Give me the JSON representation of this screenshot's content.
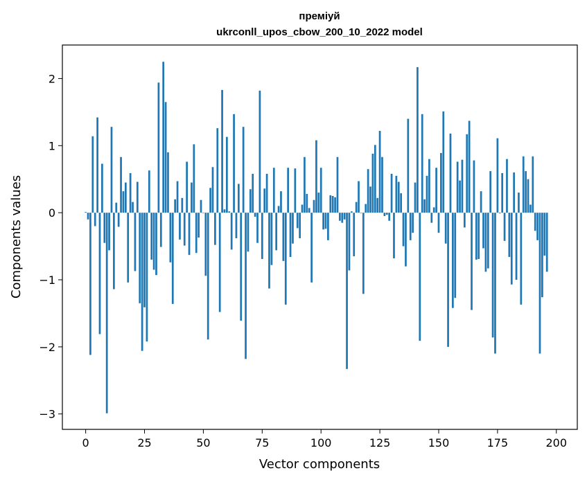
{
  "chart_data": {
    "type": "bar",
    "title_line1": "преміуй",
    "title_line2": "ukrconll_upos_cbow_200_10_2022 model",
    "xlabel": "Vector components",
    "ylabel": "Components values",
    "xlim": [
      -9.9,
      208.9
    ],
    "ylim": [
      -3.23,
      2.5
    ],
    "xticks": [
      0,
      25,
      50,
      75,
      100,
      125,
      150,
      175,
      200
    ],
    "yticks": [
      -3,
      -2,
      -1,
      0,
      1,
      2
    ],
    "ytick_labels": [
      "−3",
      "−2",
      "−1",
      "0",
      "1",
      "2"
    ],
    "bar_color": "#1f77b4",
    "values": [
      0.01,
      -0.1,
      -2.12,
      1.14,
      -0.2,
      1.42,
      -1.81,
      0.73,
      -0.45,
      -2.99,
      -0.56,
      1.28,
      -1.14,
      0.15,
      -0.21,
      0.83,
      0.32,
      0.45,
      -1.04,
      0.59,
      0.16,
      -0.87,
      0.46,
      -1.35,
      -2.06,
      -1.41,
      -1.92,
      0.63,
      -0.7,
      -0.85,
      -0.93,
      1.94,
      -0.51,
      2.25,
      1.65,
      0.9,
      -0.74,
      -1.36,
      0.2,
      0.47,
      -0.4,
      0.22,
      -0.49,
      0.76,
      -0.63,
      0.45,
      1.02,
      -0.6,
      -0.37,
      0.19,
      0.0,
      -0.94,
      -1.89,
      0.37,
      0.68,
      -0.48,
      1.26,
      -1.48,
      1.83,
      0.05,
      1.13,
      0.02,
      -0.55,
      1.47,
      -0.38,
      0.43,
      -1.61,
      1.28,
      -2.18,
      -0.58,
      0.35,
      0.58,
      -0.06,
      -0.45,
      1.82,
      -0.69,
      0.36,
      0.58,
      -1.13,
      -0.78,
      0.67,
      -0.56,
      0.1,
      0.32,
      -0.72,
      -1.37,
      0.67,
      -0.66,
      -0.46,
      0.66,
      -0.23,
      -0.38,
      0.12,
      0.83,
      0.28,
      0.07,
      -1.04,
      0.19,
      1.08,
      0.3,
      0.67,
      -0.25,
      -0.24,
      -0.41,
      0.26,
      0.25,
      0.23,
      0.83,
      -0.12,
      -0.15,
      -0.1,
      -2.33,
      -0.86,
      0.02,
      -0.65,
      0.16,
      0.47,
      0.0,
      -1.21,
      0.13,
      0.65,
      0.39,
      0.88,
      1.01,
      0.22,
      1.22,
      0.83,
      -0.05,
      -0.03,
      -0.12,
      0.58,
      -0.68,
      0.55,
      0.46,
      0.29,
      -0.5,
      -0.8,
      1.4,
      -0.41,
      -0.3,
      0.45,
      2.17,
      -1.91,
      1.47,
      0.2,
      0.55,
      0.8,
      -0.15,
      0.08,
      0.67,
      -0.3,
      0.89,
      1.51,
      -0.46,
      -2.0,
      1.18,
      -1.42,
      -1.27,
      0.76,
      0.48,
      0.79,
      -0.22,
      1.17,
      1.37,
      -1.45,
      0.78,
      -0.7,
      -0.69,
      0.32,
      -0.53,
      -0.88,
      -0.83,
      0.62,
      -1.86,
      -2.1,
      1.11,
      -0.01,
      0.59,
      -0.42,
      0.8,
      -0.66,
      -1.07,
      0.6,
      -1.0,
      0.3,
      -1.37,
      0.84,
      0.62,
      0.5,
      0.12,
      0.84,
      -0.27,
      -0.41,
      -2.1,
      -1.26,
      -0.64,
      -0.88
    ]
  }
}
